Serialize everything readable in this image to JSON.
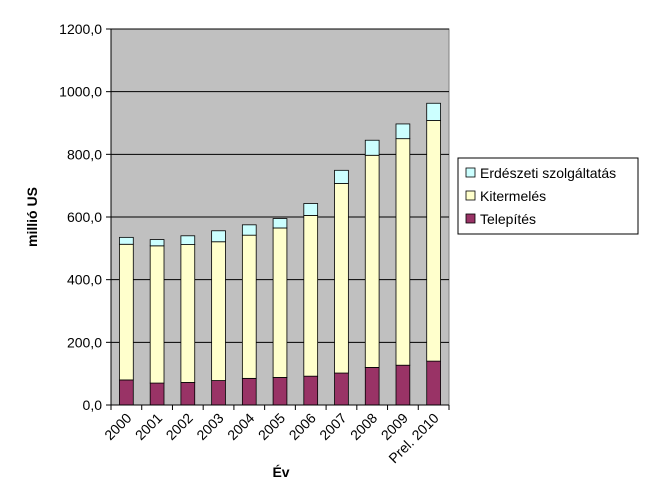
{
  "chart_data": {
    "type": "bar",
    "stacked": true,
    "title": "",
    "xlabel": "Év",
    "ylabel": "millió US",
    "ylim": [
      0,
      1200
    ],
    "ytick_step": 200,
    "ytick_labels": [
      "0,0",
      "200,0",
      "400,0",
      "600,0",
      "800,0",
      "1000,0",
      "1200,0"
    ],
    "grid": true,
    "legend_position": "right",
    "categories": [
      "2000",
      "2001",
      "2002",
      "2003",
      "2004",
      "2005",
      "2006",
      "2007",
      "2008",
      "2009",
      "Prel. 2010"
    ],
    "series": [
      {
        "name": "Telepítés",
        "color": "#993366",
        "values": [
          80,
          70,
          72,
          78,
          85,
          88,
          92,
          102,
          120,
          127,
          140
        ]
      },
      {
        "name": "Kitermelés",
        "color": "#FFFFCC",
        "values": [
          433,
          438,
          440,
          443,
          457,
          477,
          513,
          605,
          677,
          723,
          768
        ]
      },
      {
        "name": "Erdészeti szolgáltatás",
        "color": "#CCFFFF",
        "values": [
          22,
          20,
          28,
          35,
          33,
          30,
          38,
          42,
          48,
          47,
          55
        ]
      }
    ],
    "legend_order": [
      "Erdészeti szolgáltatás",
      "Kitermelés",
      "Telepítés"
    ],
    "plot_background": "#C0C0C0"
  }
}
